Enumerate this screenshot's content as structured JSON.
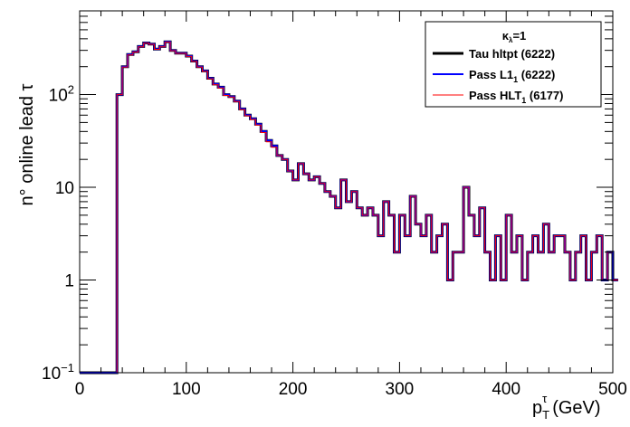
{
  "chart_data": {
    "type": "line",
    "style": "step-histogram",
    "x_scale": "linear",
    "y_scale": "log",
    "xlim": [
      0,
      500
    ],
    "ylim": [
      0.1,
      800
    ],
    "x_ticks": [
      "0",
      "100",
      "200",
      "300",
      "400",
      "500"
    ],
    "y_ticks": [
      {
        "value": 0.1,
        "base": "10",
        "exp": "−1"
      },
      {
        "value": 1,
        "label": "1"
      },
      {
        "value": 10,
        "label": "10"
      },
      {
        "value": 100,
        "base": "10",
        "exp": "2"
      }
    ],
    "xlabel": {
      "p": "p",
      "sup": "τ",
      "sub": "T",
      "unit": "(GeV)"
    },
    "ylabel": "n° online lead τ",
    "legend": {
      "placement": "top-right",
      "header": {
        "kappa": "κ",
        "sub": "λ",
        "value": "=1"
      },
      "entries": [
        {
          "text": "Tau hltpt (6222)",
          "color": "#000000"
        },
        {
          "text": "Pass L1",
          "sub": "1",
          "tail": " (6222)",
          "color": "#0000ff"
        },
        {
          "text": "Pass HLT",
          "sub": "1",
          "tail": " (6177)",
          "color": "#ff0000"
        }
      ]
    },
    "bin_width": 5,
    "series": [
      {
        "color": "#000000",
        "values": [
          0.1,
          0.1,
          0.1,
          0.1,
          0.1,
          0.1,
          0.1,
          100,
          200,
          270,
          290,
          330,
          360,
          350,
          310,
          330,
          370,
          300,
          280,
          280,
          260,
          230,
          200,
          180,
          150,
          130,
          120,
          100,
          95,
          85,
          70,
          60,
          55,
          48,
          40,
          32,
          28,
          22,
          20,
          15,
          12,
          18,
          14,
          12,
          13,
          11,
          9,
          8,
          6,
          12,
          7,
          9,
          6,
          5,
          6,
          5,
          3,
          7,
          5,
          2,
          5,
          3,
          8,
          4,
          3,
          5,
          2,
          3,
          4,
          1,
          2,
          2,
          10,
          5,
          3,
          6,
          2,
          1,
          3,
          1,
          5,
          2,
          3,
          1,
          2,
          3,
          2,
          4,
          2,
          3,
          3,
          2,
          1,
          2,
          3,
          1,
          2,
          3,
          1,
          2,
          1
        ]
      },
      {
        "color": "#0000ff",
        "values": [
          0.1,
          0.1,
          0.1,
          0.1,
          0.1,
          0.1,
          0.1,
          100,
          200,
          270,
          290,
          330,
          360,
          350,
          310,
          330,
          370,
          300,
          280,
          280,
          260,
          230,
          200,
          180,
          150,
          130,
          120,
          100,
          95,
          85,
          70,
          60,
          55,
          48,
          40,
          32,
          28,
          22,
          20,
          15,
          12,
          18,
          14,
          12,
          13,
          11,
          9,
          8,
          6,
          12,
          7,
          9,
          6,
          5,
          6,
          5,
          3,
          7,
          5,
          2,
          5,
          3,
          8,
          4,
          3,
          5,
          2,
          3,
          4,
          1,
          2,
          2,
          10,
          5,
          3,
          6,
          2,
          1,
          3,
          1,
          5,
          2,
          3,
          1,
          2,
          3,
          2,
          4,
          2,
          3,
          3,
          2,
          1,
          2,
          3,
          1,
          2,
          3,
          1,
          2,
          1
        ]
      },
      {
        "color": "#ff0000",
        "values": [
          0.1,
          0.1,
          0.1,
          0.1,
          0.1,
          0.1,
          0.1,
          100,
          198,
          268,
          288,
          328,
          358,
          348,
          308,
          328,
          368,
          298,
          278,
          278,
          258,
          228,
          198,
          178,
          148,
          128,
          118,
          98,
          94,
          84,
          69,
          59,
          54,
          47,
          39,
          31,
          27,
          22,
          20,
          15,
          12,
          18,
          14,
          12,
          13,
          11,
          9,
          8,
          6,
          12,
          7,
          9,
          6,
          5,
          6,
          5,
          3,
          7,
          5,
          2,
          5,
          3,
          8,
          4,
          3,
          5,
          2,
          3,
          4,
          1,
          2,
          2,
          10,
          5,
          3,
          6,
          2,
          1,
          3,
          1,
          5,
          2,
          3,
          1,
          2,
          3,
          2,
          4,
          2,
          3,
          3,
          2,
          1,
          2,
          3,
          1,
          2,
          3,
          1,
          2,
          1
        ]
      }
    ]
  }
}
